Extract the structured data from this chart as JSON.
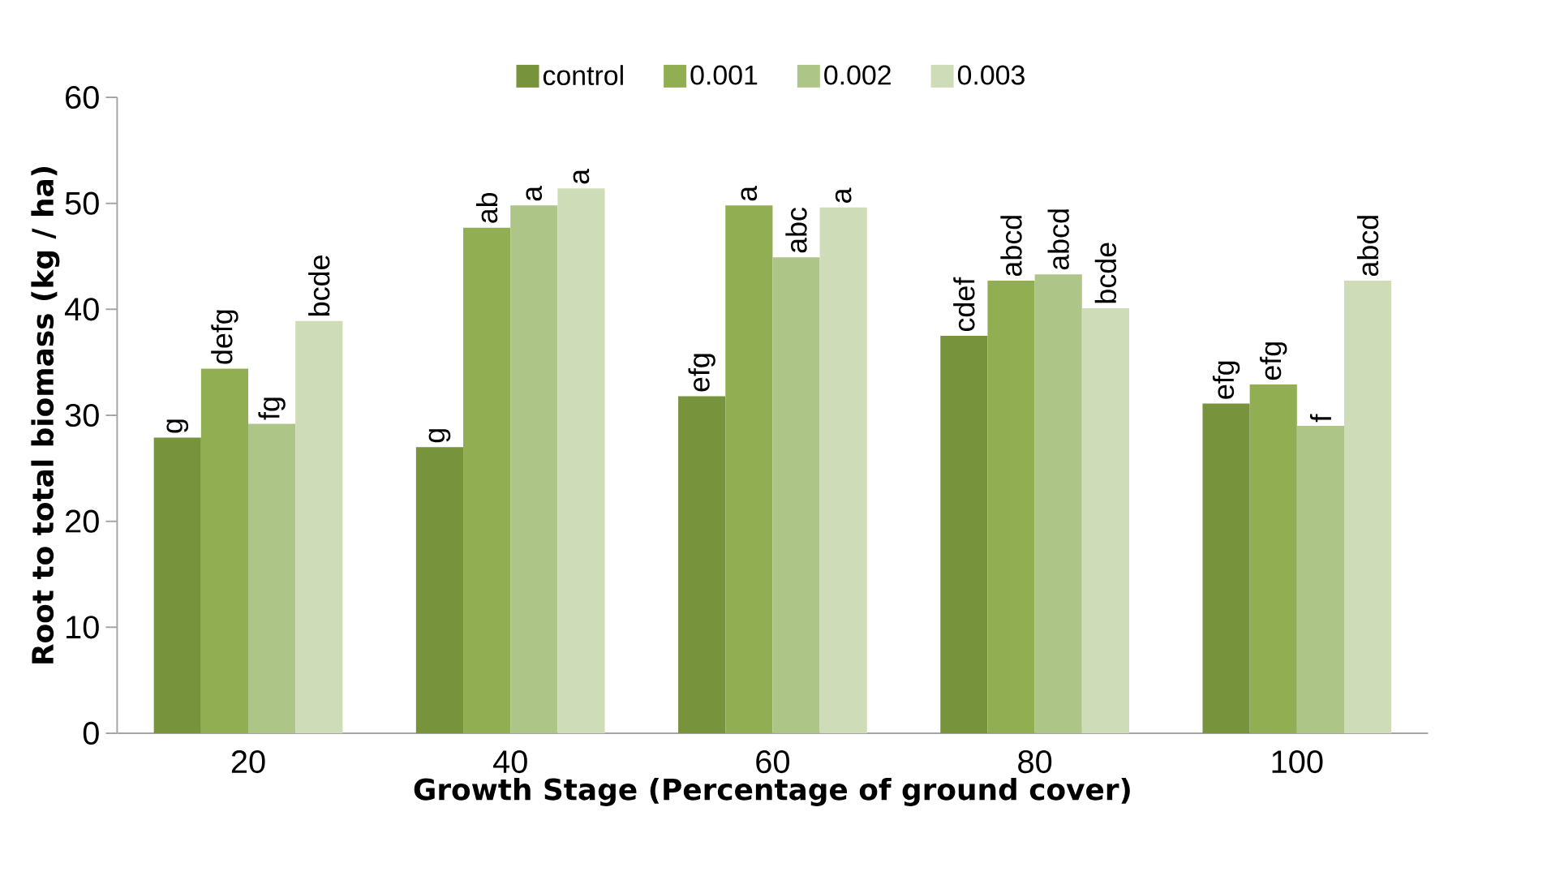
{
  "chart_data": {
    "type": "bar",
    "xlabel": "Growth Stage (Percentage of ground cover)",
    "ylabel": "Root to total biomass (kg / ha)",
    "categories": [
      "20",
      "40",
      "60",
      "80",
      "100"
    ],
    "series": [
      {
        "name": "control",
        "color": "#77933c",
        "values": [
          27.9,
          27.0,
          31.8,
          37.5,
          31.1
        ]
      },
      {
        "name": "0.001",
        "color": "#91af52",
        "values": [
          34.4,
          47.7,
          49.8,
          42.7,
          32.9
        ]
      },
      {
        "name": "0.002",
        "color": "#adc688",
        "values": [
          29.2,
          49.8,
          44.9,
          43.3,
          29.0
        ]
      },
      {
        "name": "0.003",
        "color": "#cfdcb8",
        "values": [
          38.9,
          51.4,
          49.6,
          40.1,
          42.7
        ]
      }
    ],
    "ylim": [
      0,
      60
    ],
    "yticks": [
      0,
      10,
      20,
      30,
      40,
      50,
      60
    ],
    "grid": false,
    "legend": "top",
    "annotations": [
      "g",
      "defg",
      "fg",
      "bcde",
      "g",
      "ab",
      "a",
      "a",
      "efg",
      "a",
      "abc",
      "a",
      "cdef",
      "abcd",
      "abcd",
      "bcde",
      "efg",
      "efg",
      "f",
      "abcd"
    ]
  }
}
